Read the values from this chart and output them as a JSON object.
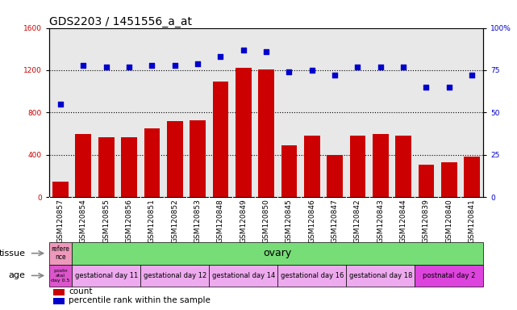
{
  "title": "GDS2203 / 1451556_a_at",
  "samples": [
    "GSM120857",
    "GSM120854",
    "GSM120855",
    "GSM120856",
    "GSM120851",
    "GSM120852",
    "GSM120853",
    "GSM120848",
    "GSM120849",
    "GSM120850",
    "GSM120845",
    "GSM120846",
    "GSM120847",
    "GSM120842",
    "GSM120843",
    "GSM120844",
    "GSM120839",
    "GSM120840",
    "GSM120841"
  ],
  "counts": [
    150,
    600,
    570,
    570,
    650,
    720,
    730,
    1090,
    1220,
    1210,
    490,
    580,
    400,
    580,
    600,
    580,
    310,
    330,
    380
  ],
  "percentiles": [
    55,
    78,
    77,
    77,
    78,
    78,
    79,
    83,
    87,
    86,
    74,
    75,
    72,
    77,
    77,
    77,
    65,
    65,
    72
  ],
  "bar_color": "#cc0000",
  "dot_color": "#0000cc",
  "ylim_left": [
    0,
    1600
  ],
  "ylim_right": [
    0,
    100
  ],
  "yticks_left": [
    0,
    400,
    800,
    1200,
    1600
  ],
  "yticks_right": [
    0,
    25,
    50,
    75,
    100
  ],
  "ytick_right_labels": [
    "0",
    "25",
    "50",
    "75",
    "100%"
  ],
  "hlines": [
    400,
    800,
    1200
  ],
  "tissue_row": {
    "label": "tissue",
    "first_cell_text": "refere\nnce",
    "first_cell_color": "#ee99bb",
    "main_text": "ovary",
    "main_color": "#77dd77"
  },
  "age_row": {
    "label": "age",
    "first_cell_text": "postn\natal\nday 0.5",
    "first_cell_color": "#dd55cc",
    "groups": [
      {
        "text": "gestational day 11",
        "color": "#eeaaee",
        "count": 3
      },
      {
        "text": "gestational day 12",
        "color": "#eeaaee",
        "count": 3
      },
      {
        "text": "gestational day 14",
        "color": "#eeaaee",
        "count": 3
      },
      {
        "text": "gestational day 16",
        "color": "#eeaaee",
        "count": 3
      },
      {
        "text": "gestational day 18",
        "color": "#eeaaee",
        "count": 3
      },
      {
        "text": "postnatal day 2",
        "color": "#dd44dd",
        "count": 3
      }
    ]
  },
  "legend": [
    {
      "label": "count",
      "color": "#cc0000"
    },
    {
      "label": "percentile rank within the sample",
      "color": "#0000cc"
    }
  ],
  "plot_bg": "#e8e8e8",
  "title_fontsize": 10,
  "tick_fontsize": 6.5,
  "bar_width": 0.7,
  "n_samples": 19
}
